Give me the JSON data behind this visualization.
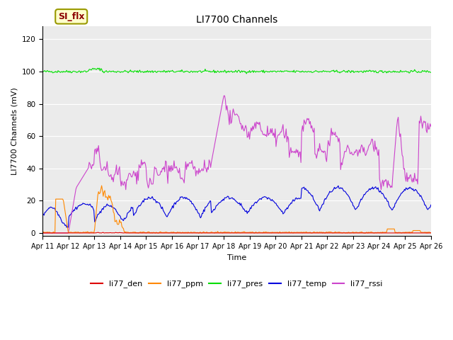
{
  "title": "LI7700 Channels",
  "xlabel": "Time",
  "ylabel": "LI7700 Channels (mV)",
  "ylim": [
    -2,
    128
  ],
  "yticks": [
    0,
    20,
    40,
    60,
    80,
    100,
    120
  ],
  "plot_bg_color": "#ebebeb",
  "fig_bg_color": "#ffffff",
  "legend_label": "SI_flx",
  "legend_facecolor": "#ffffcc",
  "legend_edgecolor": "#999900",
  "legend_text_color": "#8b0000",
  "series": {
    "li77_den": {
      "color": "#dd0000",
      "label": "li77_den"
    },
    "li77_ppm": {
      "color": "#ff8800",
      "label": "li77_ppm"
    },
    "li77_pres": {
      "color": "#00dd00",
      "label": "li77_pres"
    },
    "li77_temp": {
      "color": "#0000dd",
      "label": "li77_temp"
    },
    "li77_rssi": {
      "color": "#cc44cc",
      "label": "li77_rssi"
    }
  },
  "xticklabels": [
    "Apr 11",
    "Apr 12",
    "Apr 13",
    "Apr 14",
    "Apr 15",
    "Apr 16",
    "Apr 17",
    "Apr 18",
    "Apr 19",
    "Apr 20",
    "Apr 21",
    "Apr 22",
    "Apr 23",
    "Apr 24",
    "Apr 25",
    "Apr 26"
  ],
  "num_points": 500
}
